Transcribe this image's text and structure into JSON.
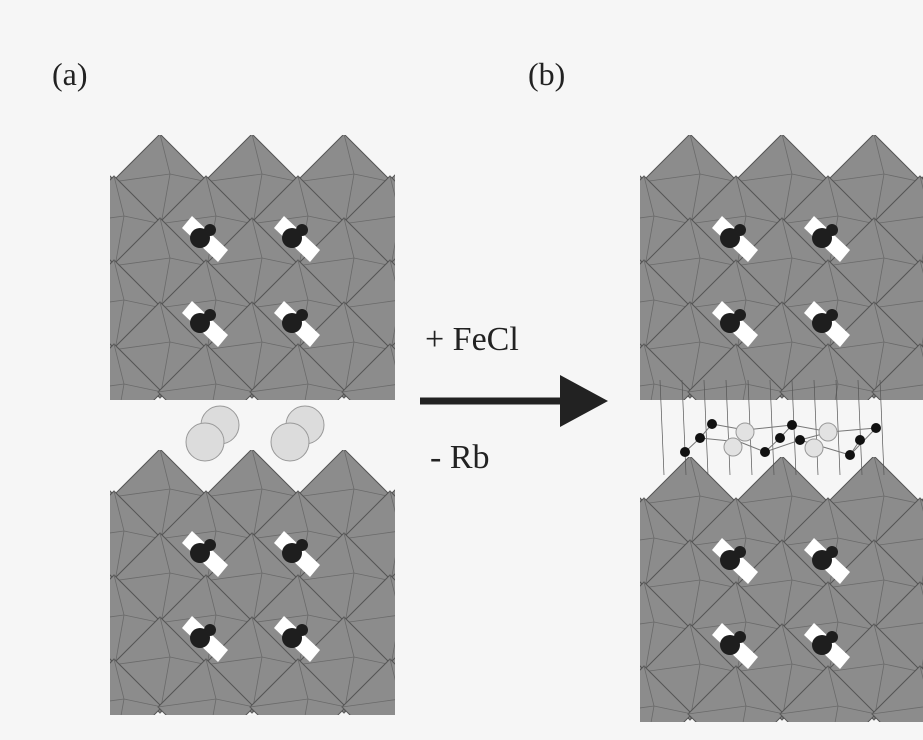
{
  "panels": [
    {
      "label": "(a)"
    },
    {
      "label": "(b)"
    }
  ],
  "reaction": {
    "added": "+ FeCl",
    "removed": "- Rb"
  }
}
